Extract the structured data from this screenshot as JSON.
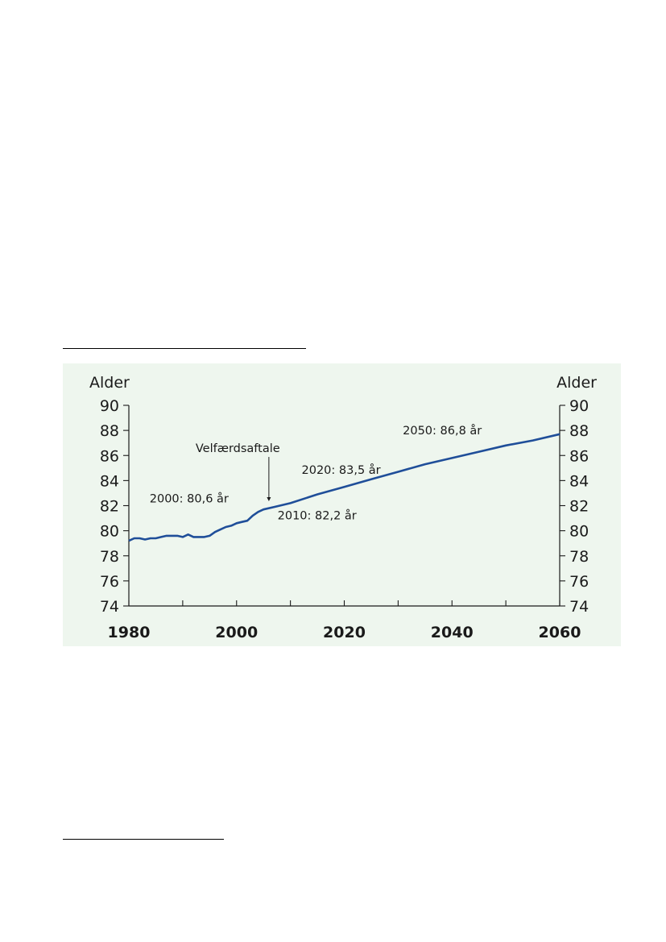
{
  "chart_data": {
    "type": "line",
    "title": "",
    "left_axis_title": "Alder",
    "right_axis_title": "Alder",
    "xlim": [
      1980,
      2060
    ],
    "ylim": [
      74,
      90
    ],
    "x_ticks": [
      1980,
      2000,
      2020,
      2040,
      2060
    ],
    "x_minor_step": 10,
    "y_ticks": [
      74,
      76,
      78,
      80,
      82,
      84,
      86,
      88,
      90
    ],
    "grid": false,
    "series": [
      {
        "color": "#1f4e99",
        "points": [
          [
            1980,
            79.2
          ],
          [
            1981,
            79.4
          ],
          [
            1982,
            79.4
          ],
          [
            1983,
            79.3
          ],
          [
            1984,
            79.4
          ],
          [
            1985,
            79.4
          ],
          [
            1986,
            79.5
          ],
          [
            1987,
            79.6
          ],
          [
            1988,
            79.6
          ],
          [
            1989,
            79.6
          ],
          [
            1990,
            79.5
          ],
          [
            1991,
            79.7
          ],
          [
            1992,
            79.5
          ],
          [
            1993,
            79.5
          ],
          [
            1994,
            79.5
          ],
          [
            1995,
            79.6
          ],
          [
            1996,
            79.9
          ],
          [
            1997,
            80.1
          ],
          [
            1998,
            80.3
          ],
          [
            1999,
            80.4
          ],
          [
            2000,
            80.6
          ],
          [
            2001,
            80.7
          ],
          [
            2002,
            80.8
          ],
          [
            2003,
            81.2
          ],
          [
            2004,
            81.5
          ],
          [
            2005,
            81.7
          ],
          [
            2007,
            81.9
          ],
          [
            2010,
            82.2
          ],
          [
            2015,
            82.9
          ],
          [
            2020,
            83.5
          ],
          [
            2025,
            84.1
          ],
          [
            2030,
            84.7
          ],
          [
            2035,
            85.3
          ],
          [
            2040,
            85.8
          ],
          [
            2045,
            86.3
          ],
          [
            2050,
            86.8
          ],
          [
            2055,
            87.2
          ],
          [
            2060,
            87.7
          ]
        ]
      }
    ],
    "annotations": [
      {
        "text": "Velfærdsaftale",
        "x": 2006,
        "y": 81.9,
        "kind": "arrow"
      },
      {
        "text": "2000: 80,6 år",
        "x": 2000,
        "y": 80.6
      },
      {
        "text": "2010: 82,2 år",
        "x": 2010,
        "y": 82.2
      },
      {
        "text": "2020: 83,5 år",
        "x": 2020,
        "y": 83.5
      },
      {
        "text": "2050: 86,8 år",
        "x": 2050,
        "y": 86.8
      }
    ]
  }
}
